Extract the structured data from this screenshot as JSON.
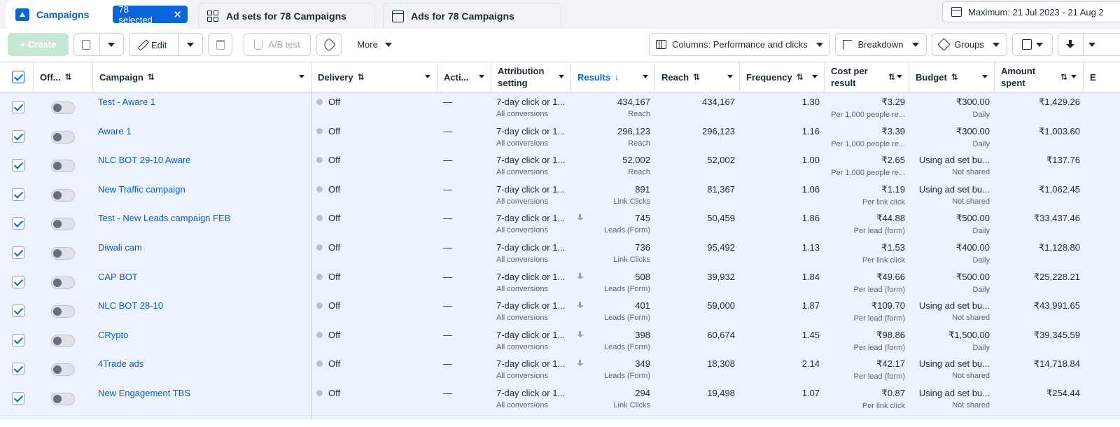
{
  "tabs": {
    "campaigns": "Campaigns",
    "selected_badge": "78 selected",
    "adsets": "Ad sets for 78 Campaigns",
    "ads": "Ads for 78 Campaigns"
  },
  "date_range": "Maximum: 21 Jul 2023 - 21 Aug 2",
  "toolbar": {
    "create": "+ Create",
    "edit": "Edit",
    "ab_test": "A/B test",
    "more": "More",
    "columns": "Columns: Performance and clicks",
    "breakdown": "Breakdown",
    "groups": "Groups"
  },
  "columns": {
    "off": "Off...",
    "campaign": "Campaign",
    "delivery": "Delivery",
    "actions": "Acti...",
    "attribution": "Attribution setting",
    "results": "Results",
    "reach": "Reach",
    "frequency": "Frequency",
    "cost_per_result": "Cost per result",
    "budget": "Budget",
    "amount_spent": "Amount spent",
    "next": "E"
  },
  "rows": [
    {
      "name": "Test - Aware 1",
      "delivery": "Off",
      "actions": "—",
      "attr": "7-day click or 1...",
      "attr_sub": "All conversions",
      "results": "434,167",
      "results_sub": "Reach",
      "reach": "434,167",
      "freq": "1.30",
      "cost": "₹3.29",
      "cost_sub": "Per 1,000 people re...",
      "budget": "₹300.00",
      "budget_sub": "Daily",
      "spent": "₹1,429.26",
      "dl": false
    },
    {
      "name": "Aware 1",
      "delivery": "Off",
      "actions": "—",
      "attr": "7-day click or 1...",
      "attr_sub": "All conversions",
      "results": "296,123",
      "results_sub": "Reach",
      "reach": "296,123",
      "freq": "1.16",
      "cost": "₹3.39",
      "cost_sub": "Per 1,000 people re...",
      "budget": "₹300.00",
      "budget_sub": "Daily",
      "spent": "₹1,003.60",
      "dl": false
    },
    {
      "name": "NLC BOT 29-10 Aware",
      "delivery": "Off",
      "actions": "—",
      "attr": "7-day click or 1...",
      "attr_sub": "All conversions",
      "results": "52,002",
      "results_sub": "Reach",
      "reach": "52,002",
      "freq": "1.00",
      "cost": "₹2.65",
      "cost_sub": "Per 1,000 people re...",
      "budget": "Using ad set bu...",
      "budget_sub": "Not shared",
      "spent": "₹137.76",
      "dl": false
    },
    {
      "name": "New Traffic campaign",
      "delivery": "Off",
      "actions": "—",
      "attr": "7-day click or 1...",
      "attr_sub": "All conversions",
      "results": "891",
      "results_sub": "Link Clicks",
      "reach": "81,367",
      "freq": "1.06",
      "cost": "₹1.19",
      "cost_sub": "Per link click",
      "budget": "Using ad set bu...",
      "budget_sub": "Not shared",
      "spent": "₹1,062.45",
      "dl": false
    },
    {
      "name": "Test - New Leads campaign FEB",
      "delivery": "Off",
      "actions": "—",
      "attr": "7-day click or 1...",
      "attr_sub": "All conversions",
      "results": "745",
      "results_sub": "Leads (Form)",
      "reach": "50,459",
      "freq": "1.86",
      "cost": "₹44.88",
      "cost_sub": "Per lead (form)",
      "budget": "₹500.00",
      "budget_sub": "Daily",
      "spent": "₹33,437.46",
      "dl": true
    },
    {
      "name": "Diwali cam",
      "delivery": "Off",
      "actions": "—",
      "attr": "7-day click or 1...",
      "attr_sub": "All conversions",
      "results": "736",
      "results_sub": "Link Clicks",
      "reach": "95,492",
      "freq": "1.13",
      "cost": "₹1.53",
      "cost_sub": "Per link click",
      "budget": "₹400.00",
      "budget_sub": "Daily",
      "spent": "₹1,128.80",
      "dl": false
    },
    {
      "name": "CAP BOT",
      "delivery": "Off",
      "actions": "—",
      "attr": "7-day click or 1...",
      "attr_sub": "All conversions",
      "results": "508",
      "results_sub": "Leads (Form)",
      "reach": "39,932",
      "freq": "1.84",
      "cost": "₹49.66",
      "cost_sub": "Per lead (form)",
      "budget": "₹500.00",
      "budget_sub": "Daily",
      "spent": "₹25,228.21",
      "dl": true
    },
    {
      "name": "NLC BOT 28-10",
      "delivery": "Off",
      "actions": "—",
      "attr": "7-day click or 1...",
      "attr_sub": "All conversions",
      "results": "401",
      "results_sub": "Leads (Form)",
      "reach": "59,000",
      "freq": "1.87",
      "cost": "₹109.70",
      "cost_sub": "Per lead (form)",
      "budget": "Using ad set bu...",
      "budget_sub": "Not shared",
      "spent": "₹43,991.65",
      "dl": true
    },
    {
      "name": "CRypto",
      "delivery": "Off",
      "actions": "—",
      "attr": "7-day click or 1...",
      "attr_sub": "All conversions",
      "results": "398",
      "results_sub": "Leads (Form)",
      "reach": "60,674",
      "freq": "1.45",
      "cost": "₹98.86",
      "cost_sub": "Per lead (form)",
      "budget": "₹1,500.00",
      "budget_sub": "Daily",
      "spent": "₹39,345.59",
      "dl": true
    },
    {
      "name": "4Trade ads",
      "delivery": "Off",
      "actions": "—",
      "attr": "7-day click or 1...",
      "attr_sub": "All conversions",
      "results": "349",
      "results_sub": "Leads (Form)",
      "reach": "18,308",
      "freq": "2.14",
      "cost": "₹42.17",
      "cost_sub": "Per lead (form)",
      "budget": "Using ad set bu...",
      "budget_sub": "Not shared",
      "spent": "₹14,718.84",
      "dl": true
    },
    {
      "name": "New Engagement TBS",
      "delivery": "Off",
      "actions": "—",
      "attr": "7-day click or 1...",
      "attr_sub": "All conversions",
      "results": "294",
      "results_sub": "Link Clicks",
      "reach": "19,498",
      "freq": "1.07",
      "cost": "₹0.87",
      "cost_sub": "Per link click",
      "budget": "Using ad set bu...",
      "budget_sub": "Not shared",
      "spent": "₹254.44",
      "dl": false
    }
  ]
}
